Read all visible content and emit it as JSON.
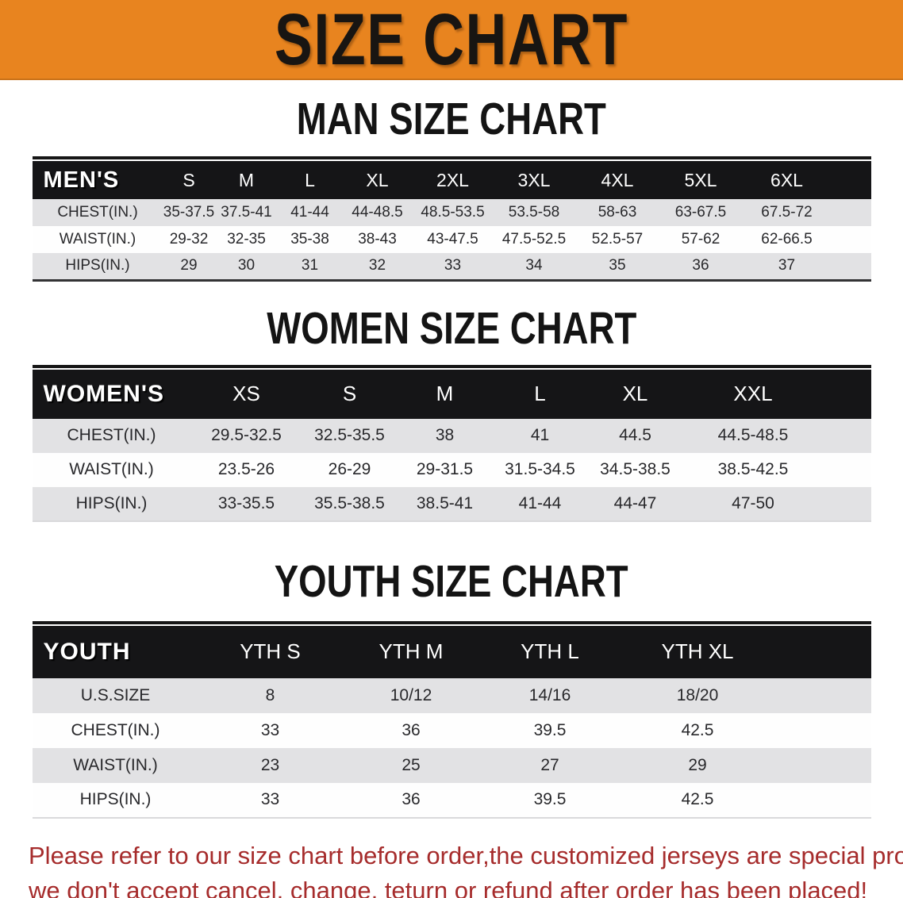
{
  "banner": {
    "title": "SIZE CHART",
    "bg_color": "#E8841F",
    "text_color": "#181512"
  },
  "sections": [
    {
      "heading": "MAN SIZE CHART",
      "table": {
        "header_label": "MEN'S",
        "columns": [
          "S",
          "M",
          "L",
          "XL",
          "2XL",
          "3XL",
          "4XL",
          "5XL",
          "6XL"
        ],
        "rows": [
          {
            "label": "CHEST(IN.)",
            "values": [
              "35-37.5",
              "37.5-41",
              "41-44",
              "44-48.5",
              "48.5-53.5",
              "53.5-58",
              "58-63",
              "63-67.5",
              "67.5-72"
            ]
          },
          {
            "label": "WAIST(IN.)",
            "values": [
              "29-32",
              "32-35",
              "35-38",
              "38-43",
              "43-47.5",
              "47.5-52.5",
              "52.5-57",
              "57-62",
              "62-66.5"
            ]
          },
          {
            "label": "HIPS(IN.)",
            "values": [
              "29",
              "30",
              "31",
              "32",
              "33",
              "34",
              "35",
              "36",
              "37"
            ]
          }
        ]
      }
    },
    {
      "heading": "WOMEN SIZE CHART",
      "table": {
        "header_label": "WOMEN'S",
        "columns": [
          "XS",
          "S",
          "M",
          "L",
          "XL",
          "XXL"
        ],
        "rows": [
          {
            "label": "CHEST(IN.)",
            "values": [
              "29.5-32.5",
              "32.5-35.5",
              "38",
              "41",
              "44.5",
              "44.5-48.5"
            ]
          },
          {
            "label": "WAIST(IN.)",
            "values": [
              "23.5-26",
              "26-29",
              "29-31.5",
              "31.5-34.5",
              "34.5-38.5",
              "38.5-42.5"
            ]
          },
          {
            "label": "HIPS(IN.)",
            "values": [
              "33-35.5",
              "35.5-38.5",
              "38.5-41",
              "41-44",
              "44-47",
              "47-50"
            ]
          }
        ]
      }
    },
    {
      "heading": "YOUTH SIZE CHART",
      "table": {
        "header_label": "YOUTH",
        "columns": [
          "YTH S",
          "YTH M",
          "YTH L",
          "YTH XL"
        ],
        "rows": [
          {
            "label": "U.S.SIZE",
            "values": [
              "8",
              "10/12",
              "14/16",
              "18/20"
            ]
          },
          {
            "label": "CHEST(IN.)",
            "values": [
              "33",
              "36",
              "39.5",
              "42.5"
            ]
          },
          {
            "label": "WAIST(IN.)",
            "values": [
              "23",
              "25",
              "27",
              "29"
            ]
          },
          {
            "label": "HIPS(IN.)",
            "values": [
              "33",
              "36",
              "39.5",
              "42.5"
            ]
          }
        ]
      }
    }
  ],
  "footer": {
    "line1": "Please refer to our size chart before order,the customized jerseys are special products,",
    "line2": "we don't accept cancel, change, teturn or refund after order has been placed!",
    "text_color": "#A62C2C"
  }
}
